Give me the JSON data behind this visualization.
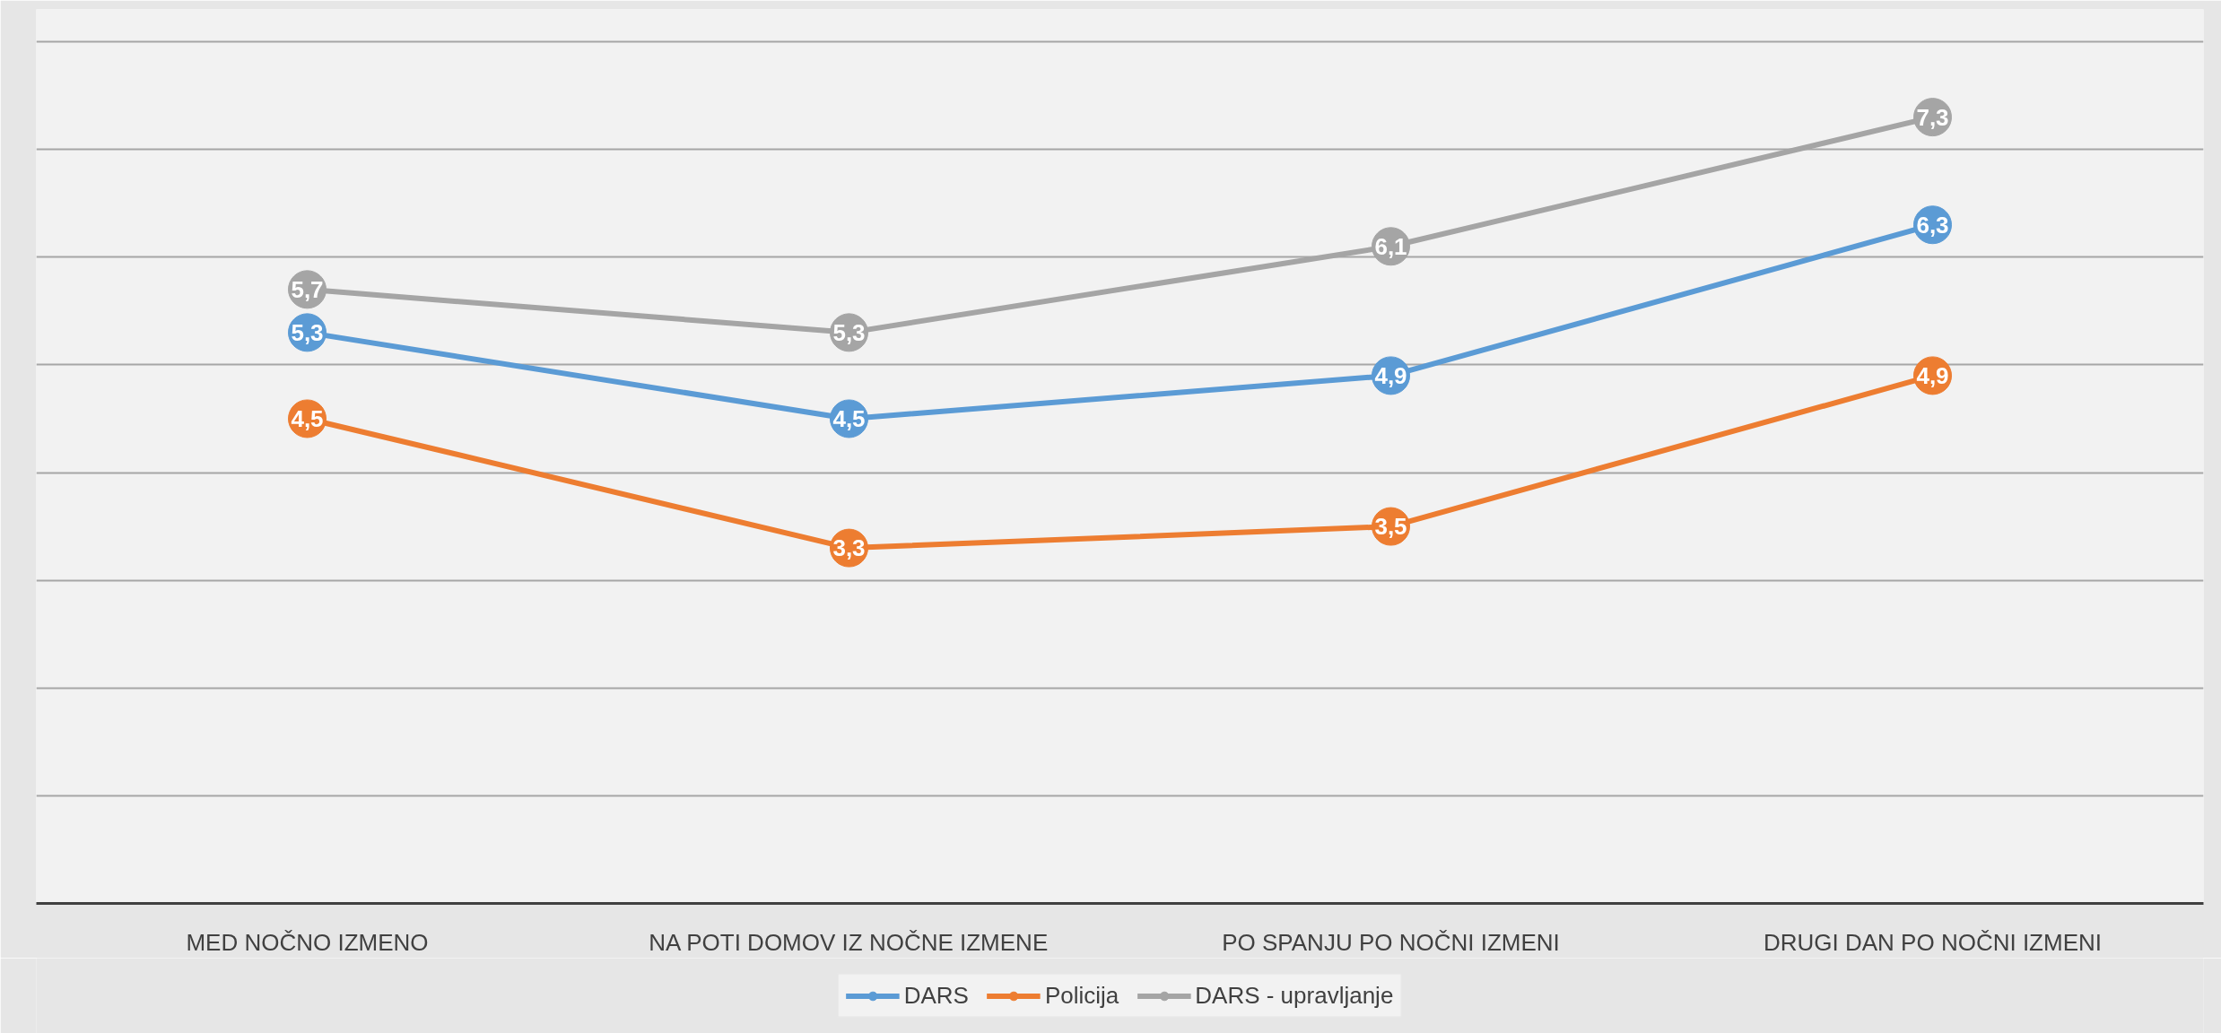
{
  "chart_data": {
    "type": "line",
    "categories": [
      "MED NOČNO IZMENO",
      "NA POTI DOMOV IZ NOČNE IZMENE",
      "PO SPANJU PO NOČNI IZMENI",
      "DRUGI DAN PO NOČNI IZMENI"
    ],
    "series": [
      {
        "name": "DARS",
        "color": "#5b9bd5",
        "values": [
          5.3,
          4.5,
          4.9,
          6.3
        ],
        "value_labels": [
          "5,3",
          "4,5",
          "4,9",
          "6,3"
        ]
      },
      {
        "name": "Policija",
        "color": "#ed7d31",
        "values": [
          4.5,
          3.3,
          3.5,
          4.9
        ],
        "value_labels": [
          "4,5",
          "3,3",
          "3,5",
          "4,9"
        ]
      },
      {
        "name": "DARS - upravljanje",
        "color": "#a5a5a5",
        "values": [
          5.7,
          5.3,
          6.1,
          7.3
        ],
        "value_labels": [
          "5,7",
          "5,3",
          "6,1",
          "7,3"
        ]
      }
    ],
    "ylim": [
      0,
      8.3
    ],
    "yticks": [
      {
        "value": 0,
        "label": null
      },
      {
        "value": 1,
        "label": null
      },
      {
        "value": 2,
        "label": null
      },
      {
        "value": 3,
        "label": null
      },
      {
        "value": 4,
        "label": null
      },
      {
        "value": 5,
        "label": null
      },
      {
        "value": 6,
        "label": null
      },
      {
        "value": 7,
        "label": null
      },
      {
        "value": 8,
        "label": null
      }
    ],
    "tick_labels": "x",
    "grid": "y",
    "legend": "bottom",
    "marker": "circle",
    "line_style": "solid"
  }
}
